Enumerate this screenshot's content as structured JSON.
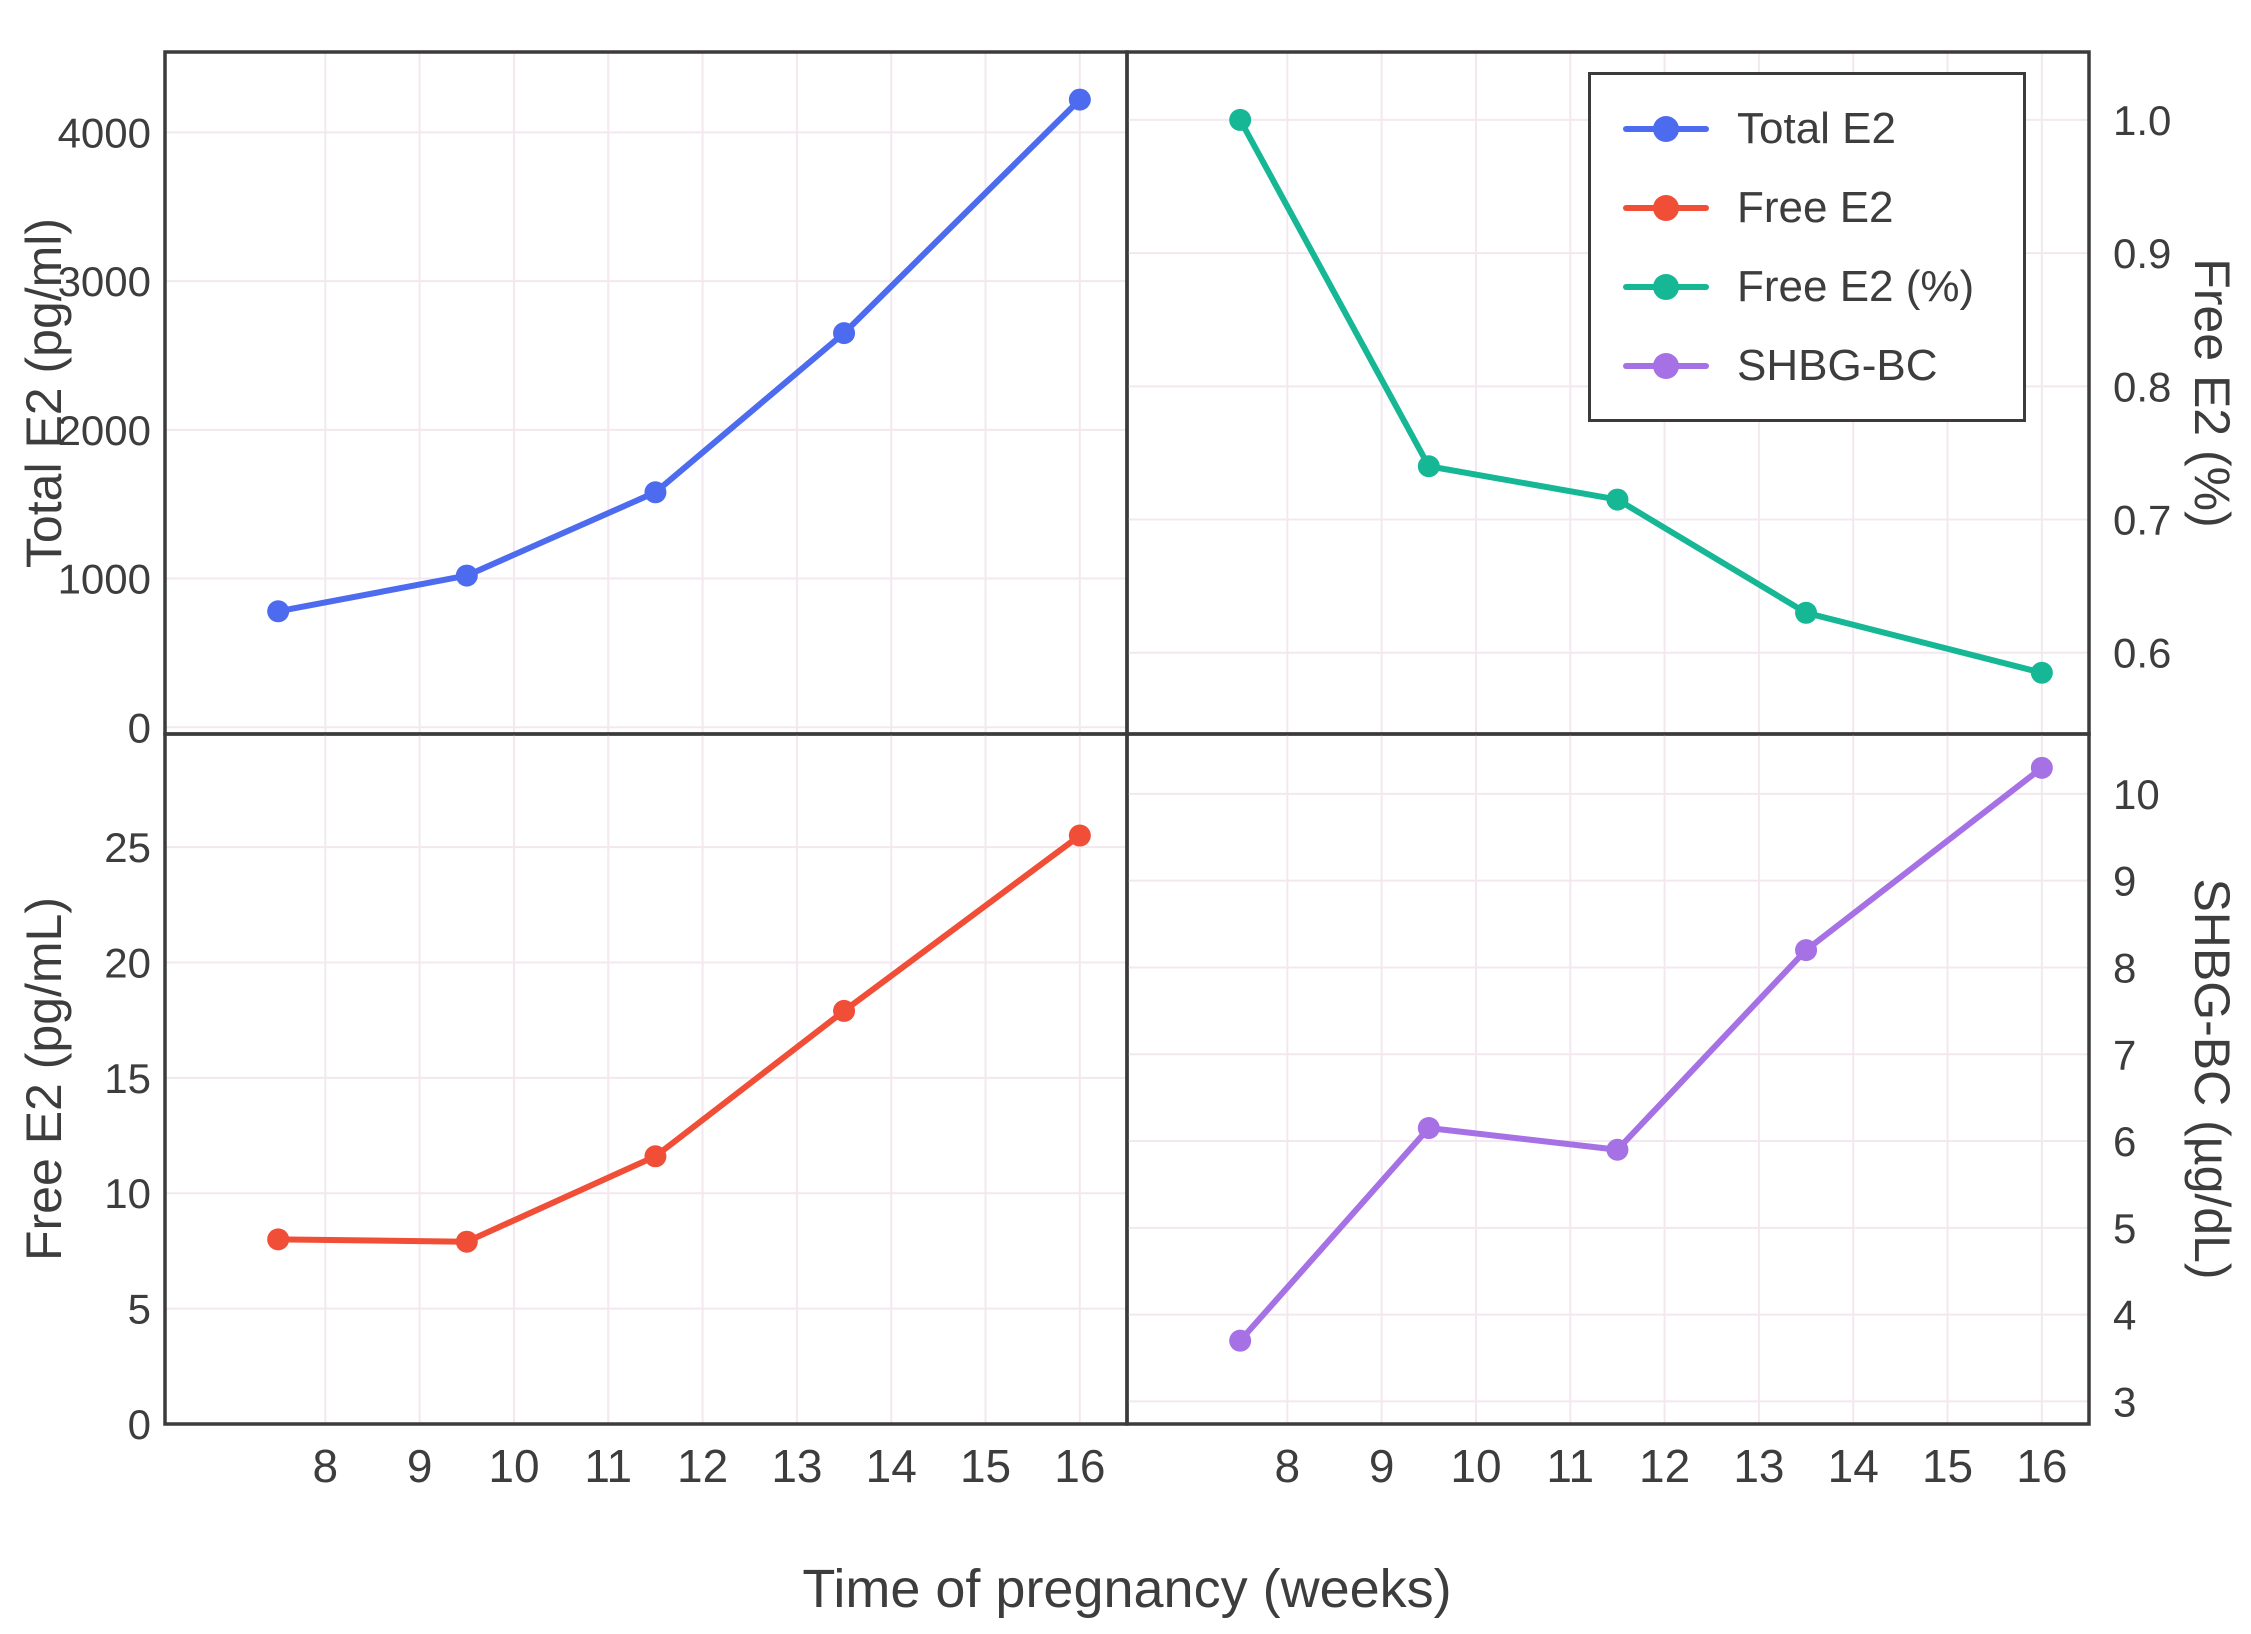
{
  "figure": {
    "background": "#ffffff",
    "border_color": "#3b3b3b",
    "grid_color": "#f3e8ef",
    "text_color": "#3d3d3d"
  },
  "chart_data": {
    "type": "line",
    "title": "",
    "xlabel": "Time of pregnancy (weeks)",
    "x": [
      7.5,
      9.5,
      11.5,
      13.5,
      16
    ],
    "x_ticks": [
      "8",
      "9",
      "10",
      "11",
      "12",
      "13",
      "14",
      "15",
      "16"
    ],
    "xlim": [
      6.3,
      16.5
    ],
    "grid": true,
    "legend_position": "upper right of top-right panel",
    "panels": [
      {
        "id": "total-e2",
        "position": "top-left",
        "series_name": "Total E2",
        "ylabel": "Total E2 (pg/ml)",
        "axis_side": "left",
        "color": "#4d6bef",
        "values": [
          780,
          1020,
          1580,
          2650,
          4220
        ],
        "ylim": [
          -45,
          4540
        ],
        "y_ticks": [
          "0",
          "1000",
          "2000",
          "3000",
          "4000"
        ]
      },
      {
        "id": "free-e2-pct",
        "position": "top-right",
        "series_name": "Free E2 (%)",
        "ylabel": "Free E2 (%)",
        "axis_side": "right",
        "color": "#15b795",
        "values": [
          1.0,
          0.74,
          0.715,
          0.63,
          0.585
        ],
        "ylim": [
          0.539,
          1.051
        ],
        "y_ticks": [
          "0.6",
          "0.7",
          "0.8",
          "0.9",
          "1.0"
        ]
      },
      {
        "id": "free-e2",
        "position": "bottom-left",
        "series_name": "Free E2",
        "ylabel": "Free E2 (pg/mL)",
        "axis_side": "left",
        "color": "#f04e37",
        "values": [
          8.0,
          7.9,
          11.6,
          17.9,
          25.5
        ],
        "ylim": [
          0,
          29.9
        ],
        "y_ticks": [
          "0",
          "5",
          "10",
          "15",
          "20",
          "25"
        ]
      },
      {
        "id": "shbg-bc",
        "position": "bottom-right",
        "series_name": "SHBG-BC",
        "ylabel": "SHBG-BC (µg/dL)",
        "axis_side": "right",
        "color": "#a671e5",
        "values": [
          3.7,
          6.15,
          5.9,
          8.2,
          10.3
        ],
        "ylim": [
          2.74,
          10.69
        ],
        "y_ticks": [
          "3",
          "4",
          "5",
          "6",
          "7",
          "8",
          "9",
          "10"
        ]
      }
    ]
  },
  "legend": {
    "items": [
      {
        "label": "Total E2",
        "color": "#4d6bef"
      },
      {
        "label": "Free E2",
        "color": "#f04e37"
      },
      {
        "label": "Free E2 (%)",
        "color": "#15b795"
      },
      {
        "label": "SHBG-BC",
        "color": "#a671e5"
      }
    ]
  }
}
